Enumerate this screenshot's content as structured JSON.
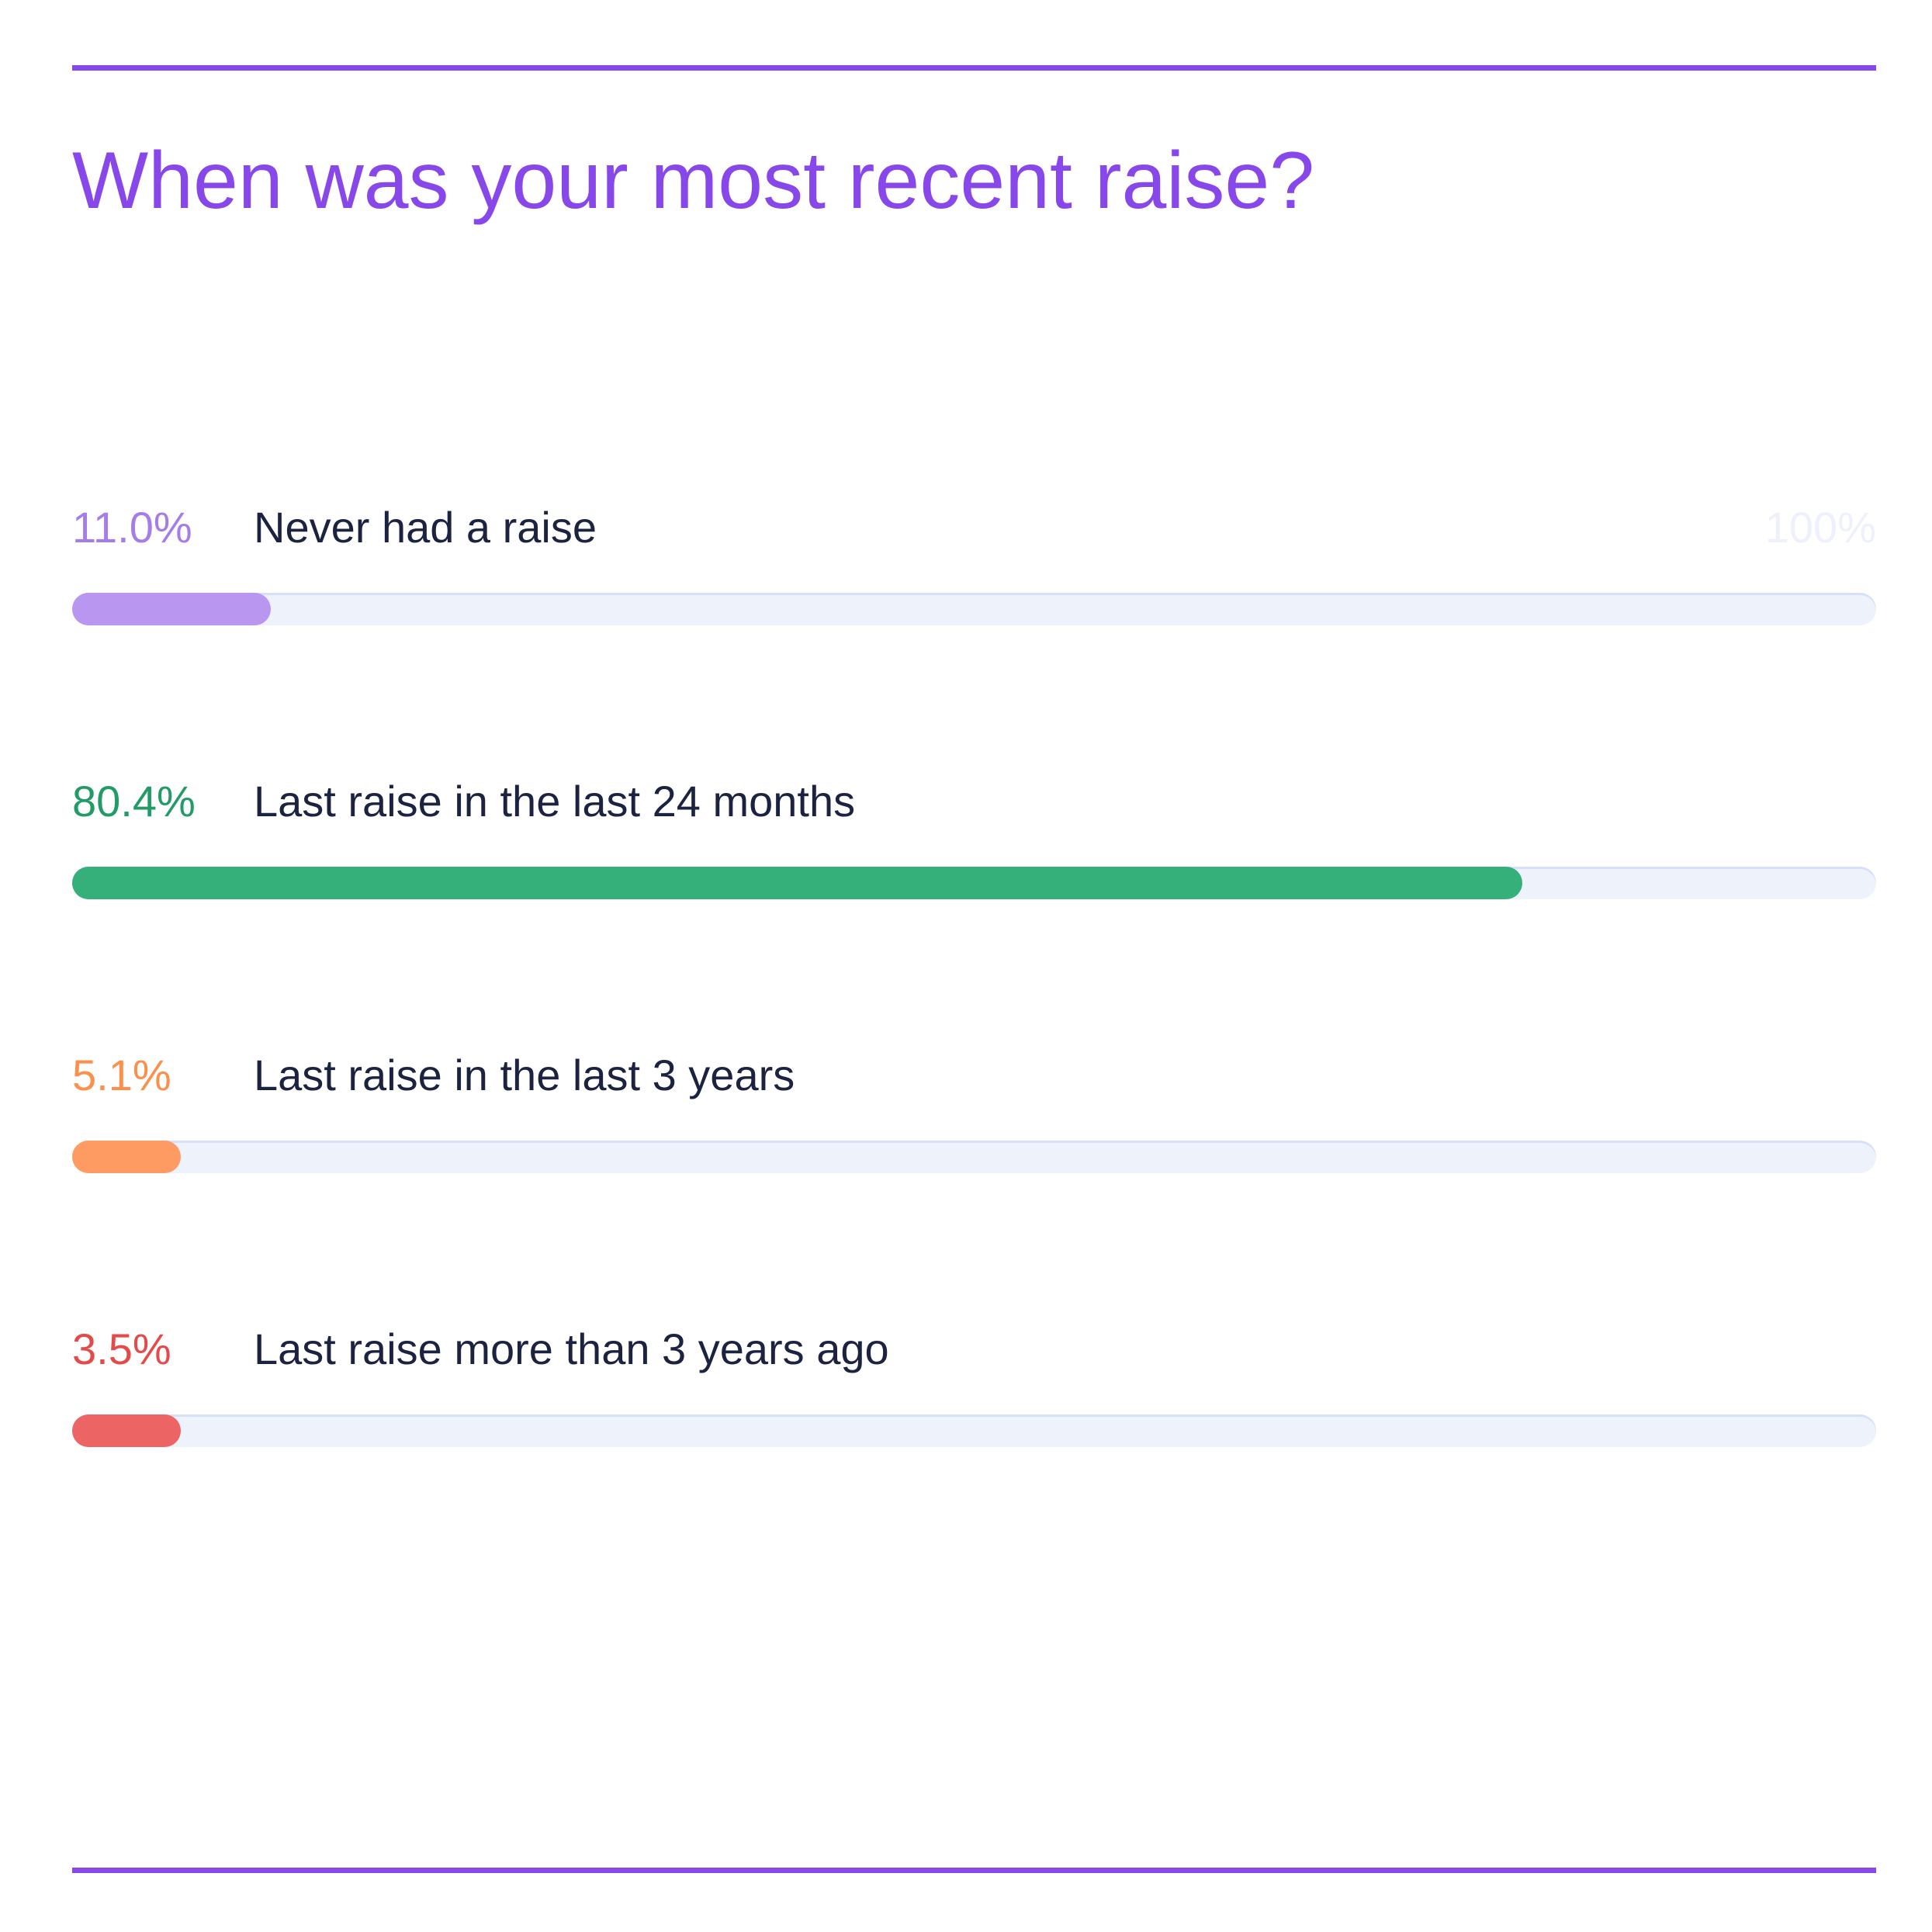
{
  "title": "When was your most recent raise?",
  "max_label": "100%",
  "chart_data": {
    "type": "bar",
    "orientation": "horizontal",
    "title": "When was your most recent raise?",
    "xlim": [
      0,
      100
    ],
    "max_label": "100%",
    "categories": [
      "Never had a raise",
      "Last raise in the last 24 months",
      "Last raise in the last 3 years",
      "Last raise more than 3 years ago"
    ],
    "bars": [
      {
        "label": "Never had a raise",
        "value_label": "11.0%",
        "value": 11.0,
        "color": "#b996ef",
        "label_color": "#a57de8"
      },
      {
        "label": "Last raise in the last 24 months",
        "value_label": "80.4%",
        "value": 80.4,
        "color": "#36b07b",
        "label_color": "#229b67"
      },
      {
        "label": "Last raise in the last 3 years",
        "value_label": "5.1%",
        "value": 5.1,
        "color": "#fe9b62",
        "label_color": "#fb8f4c"
      },
      {
        "label": "Last raise more than 3 years ago",
        "value_label": "3.5%",
        "value": 3.5,
        "color": "#ec6464",
        "label_color": "#e34b4b"
      }
    ]
  }
}
